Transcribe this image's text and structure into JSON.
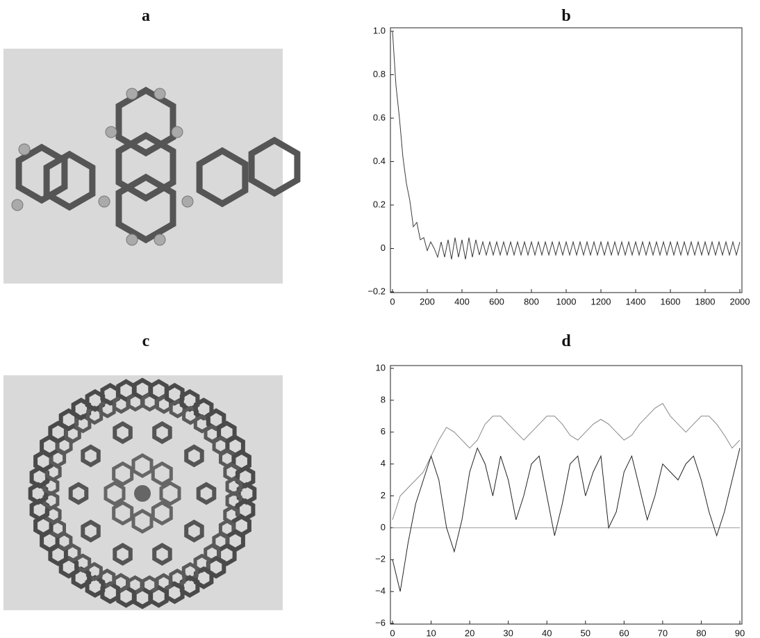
{
  "images": [
    {
      "label": "a"
    },
    {
      "label": "c"
    }
  ],
  "chart_data": [
    {
      "type": "line",
      "title": "b",
      "color": "#3a3a3a",
      "x": [
        0,
        20,
        40,
        60,
        80,
        100,
        120,
        140,
        160,
        180,
        200,
        220,
        240,
        260,
        280,
        300,
        320,
        340,
        360,
        380,
        400,
        420,
        440,
        460,
        480,
        500,
        520,
        540,
        560,
        580,
        600,
        620,
        640,
        660,
        680,
        700,
        720,
        740,
        760,
        780,
        800,
        820,
        840,
        860,
        880,
        900,
        920,
        940,
        960,
        980,
        1000,
        1020,
        1040,
        1060,
        1080,
        1100,
        1120,
        1140,
        1160,
        1180,
        1200,
        1220,
        1240,
        1260,
        1280,
        1300,
        1320,
        1340,
        1360,
        1380,
        1400,
        1420,
        1440,
        1460,
        1480,
        1500,
        1520,
        1540,
        1560,
        1580,
        1600,
        1620,
        1640,
        1660,
        1680,
        1700,
        1720,
        1740,
        1760,
        1780,
        1800,
        1820,
        1840,
        1860,
        1880,
        1900,
        1920,
        1940,
        1960,
        1980,
        2000
      ],
      "values": [
        1.0,
        0.75,
        0.6,
        0.42,
        0.3,
        0.22,
        0.1,
        0.12,
        0.04,
        0.05,
        -0.01,
        0.03,
        0.0,
        -0.04,
        0.03,
        -0.04,
        0.04,
        -0.05,
        0.05,
        -0.04,
        0.04,
        -0.05,
        0.05,
        -0.04,
        0.04,
        -0.03,
        0.03,
        -0.03,
        0.03,
        -0.03,
        0.03,
        -0.03,
        0.03,
        -0.03,
        0.03,
        -0.03,
        0.03,
        -0.03,
        0.03,
        -0.03,
        0.03,
        -0.03,
        0.03,
        -0.03,
        0.03,
        -0.03,
        0.03,
        -0.03,
        0.03,
        -0.03,
        0.03,
        -0.03,
        0.03,
        -0.03,
        0.03,
        -0.03,
        0.03,
        -0.03,
        0.03,
        -0.03,
        0.03,
        -0.03,
        0.03,
        -0.03,
        0.03,
        -0.03,
        0.03,
        -0.03,
        0.03,
        -0.03,
        0.03,
        -0.03,
        0.03,
        -0.03,
        0.03,
        -0.03,
        0.03,
        -0.03,
        0.03,
        -0.03,
        0.03,
        -0.03,
        0.03,
        -0.03,
        0.03,
        -0.03,
        0.03,
        -0.03,
        0.03,
        -0.03,
        0.03,
        -0.03,
        0.03,
        -0.03,
        0.03,
        -0.03,
        0.03,
        -0.03,
        0.03,
        -0.03,
        0.03
      ],
      "xlim": [
        0,
        2000
      ],
      "xticks": [
        0,
        200,
        400,
        600,
        800,
        1000,
        1200,
        1400,
        1600,
        1800,
        2000
      ],
      "ylim": [
        -0.2,
        1.0
      ],
      "yticks": [
        {
          "value": -0.2,
          "label": "−0.2"
        },
        0,
        {
          "value": 0.2,
          "label": "0.2"
        },
        {
          "value": 0.4,
          "label": "0.4"
        },
        {
          "value": 0.6,
          "label": "0.6"
        },
        {
          "value": 0.8,
          "label": "0.8"
        },
        {
          "value": 1.0,
          "label": "1.0"
        }
      ]
    },
    {
      "type": "line",
      "title": "d",
      "x": [
        0,
        2,
        4,
        6,
        8,
        10,
        12,
        14,
        16,
        18,
        20,
        22,
        24,
        26,
        28,
        30,
        32,
        34,
        36,
        38,
        40,
        42,
        44,
        46,
        48,
        50,
        52,
        54,
        56,
        58,
        60,
        62,
        64,
        66,
        68,
        70,
        72,
        74,
        76,
        78,
        80,
        82,
        84,
        86,
        88,
        90
      ],
      "series": [
        {
          "color": "#888888",
          "values": [
            0.5,
            2,
            2.5,
            3,
            3.5,
            4.5,
            5.5,
            6.3,
            6,
            5.5,
            5,
            5.5,
            6.5,
            7,
            7,
            6.5,
            6,
            5.5,
            6,
            6.5,
            7,
            7,
            6.5,
            5.8,
            5.5,
            6,
            6.5,
            6.8,
            6.5,
            6,
            5.5,
            5.8,
            6.5,
            7,
            7.5,
            7.8,
            7,
            6.5,
            6,
            6.5,
            7,
            7,
            6.5,
            5.8,
            5,
            5.5
          ]
        },
        {
          "color": "#222222",
          "values": [
            -2,
            -4,
            -1,
            1.5,
            3,
            4.5,
            3,
            0,
            -1.5,
            0.5,
            3.5,
            5,
            4,
            2,
            4.5,
            3,
            0.5,
            2,
            4,
            4.5,
            2,
            -0.5,
            1.5,
            4,
            4.5,
            2,
            3.5,
            4.5,
            0,
            1,
            3.5,
            4.5,
            2.5,
            0.5,
            2,
            4,
            3.5,
            3,
            4,
            4.5,
            3,
            1,
            -0.5,
            1,
            3,
            5
          ]
        }
      ],
      "reference_line": 0,
      "reference_color": "#999999",
      "xlim": [
        0,
        90
      ],
      "xticks": [
        0,
        10,
        20,
        30,
        40,
        50,
        60,
        70,
        80,
        90
      ],
      "ylim": [
        -6,
        10
      ],
      "yticks": [
        {
          "value": -6,
          "label": "−6"
        },
        {
          "value": -4,
          "label": "−4"
        },
        {
          "value": -2,
          "label": "−2"
        },
        0,
        2,
        4,
        6,
        8,
        10
      ]
    }
  ]
}
